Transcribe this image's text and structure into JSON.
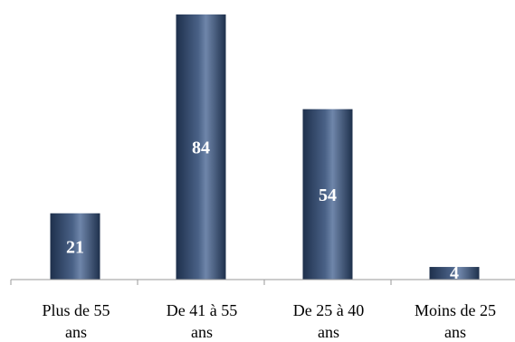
{
  "chart_data": {
    "type": "bar",
    "title": "",
    "xlabel": "",
    "ylabel": "",
    "categories": [
      [
        "Plus de 55",
        "ans"
      ],
      [
        "De 41 à 55",
        "ans"
      ],
      [
        "De 25 à 40",
        "ans"
      ],
      [
        "Moins de 25",
        "ans"
      ]
    ],
    "values": [
      21,
      84,
      54,
      4
    ],
    "ylim": [
      0,
      84
    ],
    "grid": false,
    "legend": "none",
    "colors": {
      "bar_edge": "#1e304c",
      "bar_mid": "#4a6287",
      "bar_highlight": "#6f86aa",
      "axis": "#9a9a9a",
      "value_label": "#ffffff"
    }
  }
}
